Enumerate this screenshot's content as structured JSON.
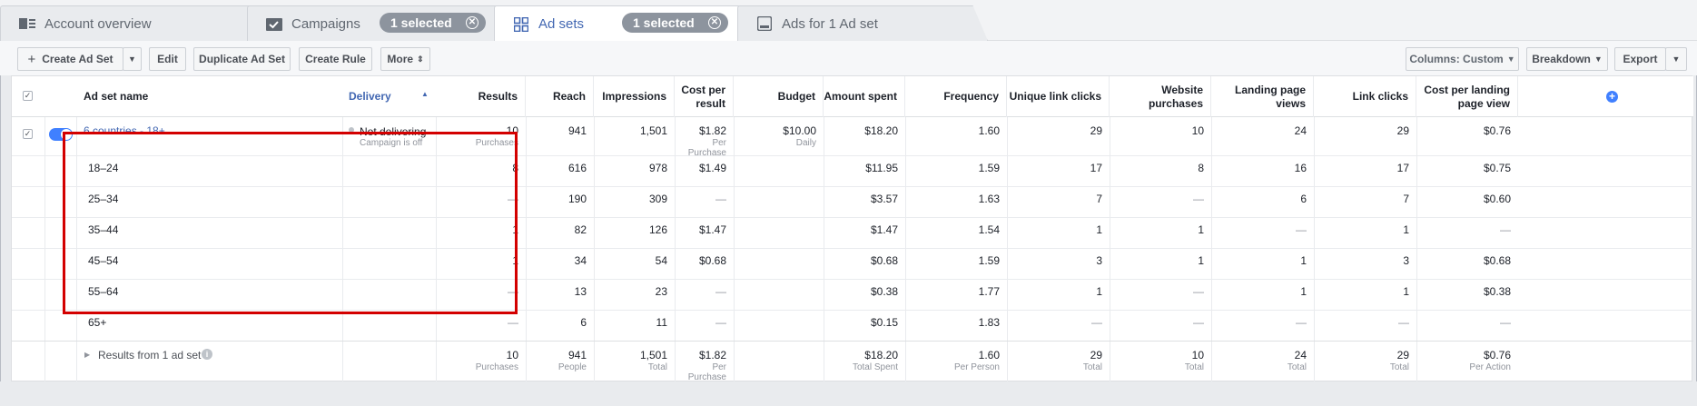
{
  "tabs": [
    {
      "label": "Account overview",
      "icon": "account-overview-icon"
    },
    {
      "label": "Campaigns",
      "icon": "folder-icon",
      "badge": "1 selected"
    },
    {
      "label": "Ad sets",
      "icon": "grid-icon",
      "badge": "1 selected"
    },
    {
      "label": "Ads for 1 Ad set",
      "icon": "ad-icon"
    }
  ],
  "toolbar": {
    "create_label": "Create Ad Set",
    "edit_label": "Edit",
    "duplicate_label": "Duplicate Ad Set",
    "create_rule_label": "Create Rule",
    "more_label": "More",
    "columns_label": "Columns: Custom",
    "breakdown_label": "Breakdown",
    "export_label": "Export"
  },
  "columns": {
    "name": "Ad set name",
    "delivery": "Delivery",
    "results": "Results",
    "reach": "Reach",
    "impressions": "Impressions",
    "cost_per_result": "Cost per result",
    "budget": "Budget",
    "amount_spent": "Amount spent",
    "frequency": "Frequency",
    "unique_link_clicks": "Unique link clicks",
    "website_purchases": "Website purchases",
    "landing_page_views": "Landing page views",
    "link_clicks": "Link clicks",
    "cost_per_landing_page_view": "Cost per landing page view"
  },
  "main_row": {
    "name": "6 countries - 18+",
    "delivery": "Not delivering",
    "delivery_sub": "Campaign is off",
    "results": "10",
    "results_sub": "Purchases",
    "reach": "941",
    "impressions": "1,501",
    "cost_per_result": "$1.82",
    "cost_per_result_sub": "Per Purchase",
    "budget": "$10.00",
    "budget_sub": "Daily",
    "amount_spent": "$18.20",
    "frequency": "1.60",
    "unique_link_clicks": "29",
    "website_purchases": "10",
    "landing_page_views": "24",
    "link_clicks": "29",
    "cost_per_landing_page_view": "$0.76"
  },
  "breakdown_rows": [
    {
      "age": "18–24",
      "results": "8",
      "reach": "616",
      "impressions": "978",
      "cpr": "$1.49",
      "spent": "$11.95",
      "freq": "1.59",
      "ulc": "17",
      "wp": "8",
      "lpv": "16",
      "lc": "17",
      "cplpv": "$0.75"
    },
    {
      "age": "25–34",
      "results": "—",
      "reach": "190",
      "impressions": "309",
      "cpr": "—",
      "spent": "$3.57",
      "freq": "1.63",
      "ulc": "7",
      "wp": "—",
      "lpv": "6",
      "lc": "7",
      "cplpv": "$0.60"
    },
    {
      "age": "35–44",
      "results": "1",
      "reach": "82",
      "impressions": "126",
      "cpr": "$1.47",
      "spent": "$1.47",
      "freq": "1.54",
      "ulc": "1",
      "wp": "1",
      "lpv": "—",
      "lc": "1",
      "cplpv": "—"
    },
    {
      "age": "45–54",
      "results": "1",
      "reach": "34",
      "impressions": "54",
      "cpr": "$0.68",
      "spent": "$0.68",
      "freq": "1.59",
      "ulc": "3",
      "wp": "1",
      "lpv": "1",
      "lc": "3",
      "cplpv": "$0.68"
    },
    {
      "age": "55–64",
      "results": "—",
      "reach": "13",
      "impressions": "23",
      "cpr": "—",
      "spent": "$0.38",
      "freq": "1.77",
      "ulc": "1",
      "wp": "—",
      "lpv": "1",
      "lc": "1",
      "cplpv": "$0.38"
    },
    {
      "age": "65+",
      "results": "—",
      "reach": "6",
      "impressions": "11",
      "cpr": "—",
      "spent": "$0.15",
      "freq": "1.83",
      "ulc": "—",
      "wp": "—",
      "lpv": "—",
      "lc": "—",
      "cplpv": "—"
    }
  ],
  "summary_row": {
    "label": "Results from 1 ad set",
    "results": "10",
    "results_sub": "Purchases",
    "reach": "941",
    "reach_sub": "People",
    "impressions": "1,501",
    "impressions_sub": "Total",
    "cpr": "$1.82",
    "cpr_sub": "Per Purchase",
    "spent": "$18.20",
    "spent_sub": "Total Spent",
    "freq": "1.60",
    "freq_sub": "Per Person",
    "ulc": "29",
    "ulc_sub": "Total",
    "wp": "10",
    "wp_sub": "Total",
    "lpv": "24",
    "lpv_sub": "Total",
    "lc": "29",
    "lc_sub": "Total",
    "cplpv": "$0.76",
    "cplpv_sub": "Per Action"
  },
  "colors": {
    "accent": "#4267b2",
    "highlight_box": "#d30000",
    "toggle_on": "#4080ff"
  }
}
